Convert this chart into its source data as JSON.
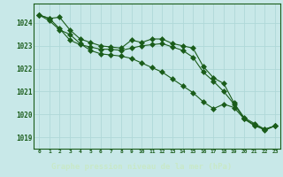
{
  "x": [
    0,
    1,
    2,
    3,
    4,
    5,
    6,
    7,
    8,
    9,
    10,
    11,
    12,
    13,
    14,
    15,
    16,
    17,
    18,
    19,
    20,
    21,
    22,
    23
  ],
  "line1": [
    1024.35,
    1024.2,
    1024.25,
    1023.7,
    1023.3,
    1023.15,
    1023.0,
    1022.95,
    1022.9,
    1023.25,
    1023.15,
    1023.3,
    1023.3,
    1023.1,
    1023.0,
    1022.9,
    1022.1,
    1021.6,
    1021.35,
    1020.5,
    1019.85,
    1019.6,
    1019.35,
    1019.5
  ],
  "line2": [
    1024.35,
    1024.2,
    1023.75,
    1023.25,
    1023.05,
    1022.95,
    1022.85,
    1022.85,
    1022.8,
    1022.9,
    1023.0,
    1023.05,
    1023.1,
    1022.95,
    1022.8,
    1022.5,
    1021.85,
    1021.45,
    1021.0,
    1020.45,
    1019.8,
    1019.55,
    1019.3,
    1019.5
  ],
  "line3": [
    1024.35,
    1024.1,
    1023.7,
    1023.5,
    1023.1,
    1022.8,
    1022.65,
    1022.6,
    1022.55,
    1022.45,
    1022.25,
    1022.05,
    1021.85,
    1021.55,
    1021.25,
    1020.95,
    1020.55,
    1020.25,
    1020.45,
    1020.3,
    1019.8,
    1019.5,
    1019.35,
    1019.5
  ],
  "line_color": "#1a5c1a",
  "bg_color": "#c8e8e8",
  "grid_color": "#a8d4d4",
  "axis_color": "#1a5c1a",
  "xlabel_bg": "#2d6b2d",
  "xlabel": "Graphe pression niveau de la mer (hPa)",
  "xlabel_color": "#c8e8c8",
  "ylim_min": 1018.5,
  "ylim_max": 1024.85,
  "yticks": [
    1019,
    1020,
    1021,
    1022,
    1023,
    1024
  ],
  "xticks": [
    0,
    1,
    2,
    3,
    4,
    5,
    6,
    7,
    8,
    9,
    10,
    11,
    12,
    13,
    14,
    15,
    16,
    17,
    18,
    19,
    20,
    21,
    22,
    23
  ]
}
